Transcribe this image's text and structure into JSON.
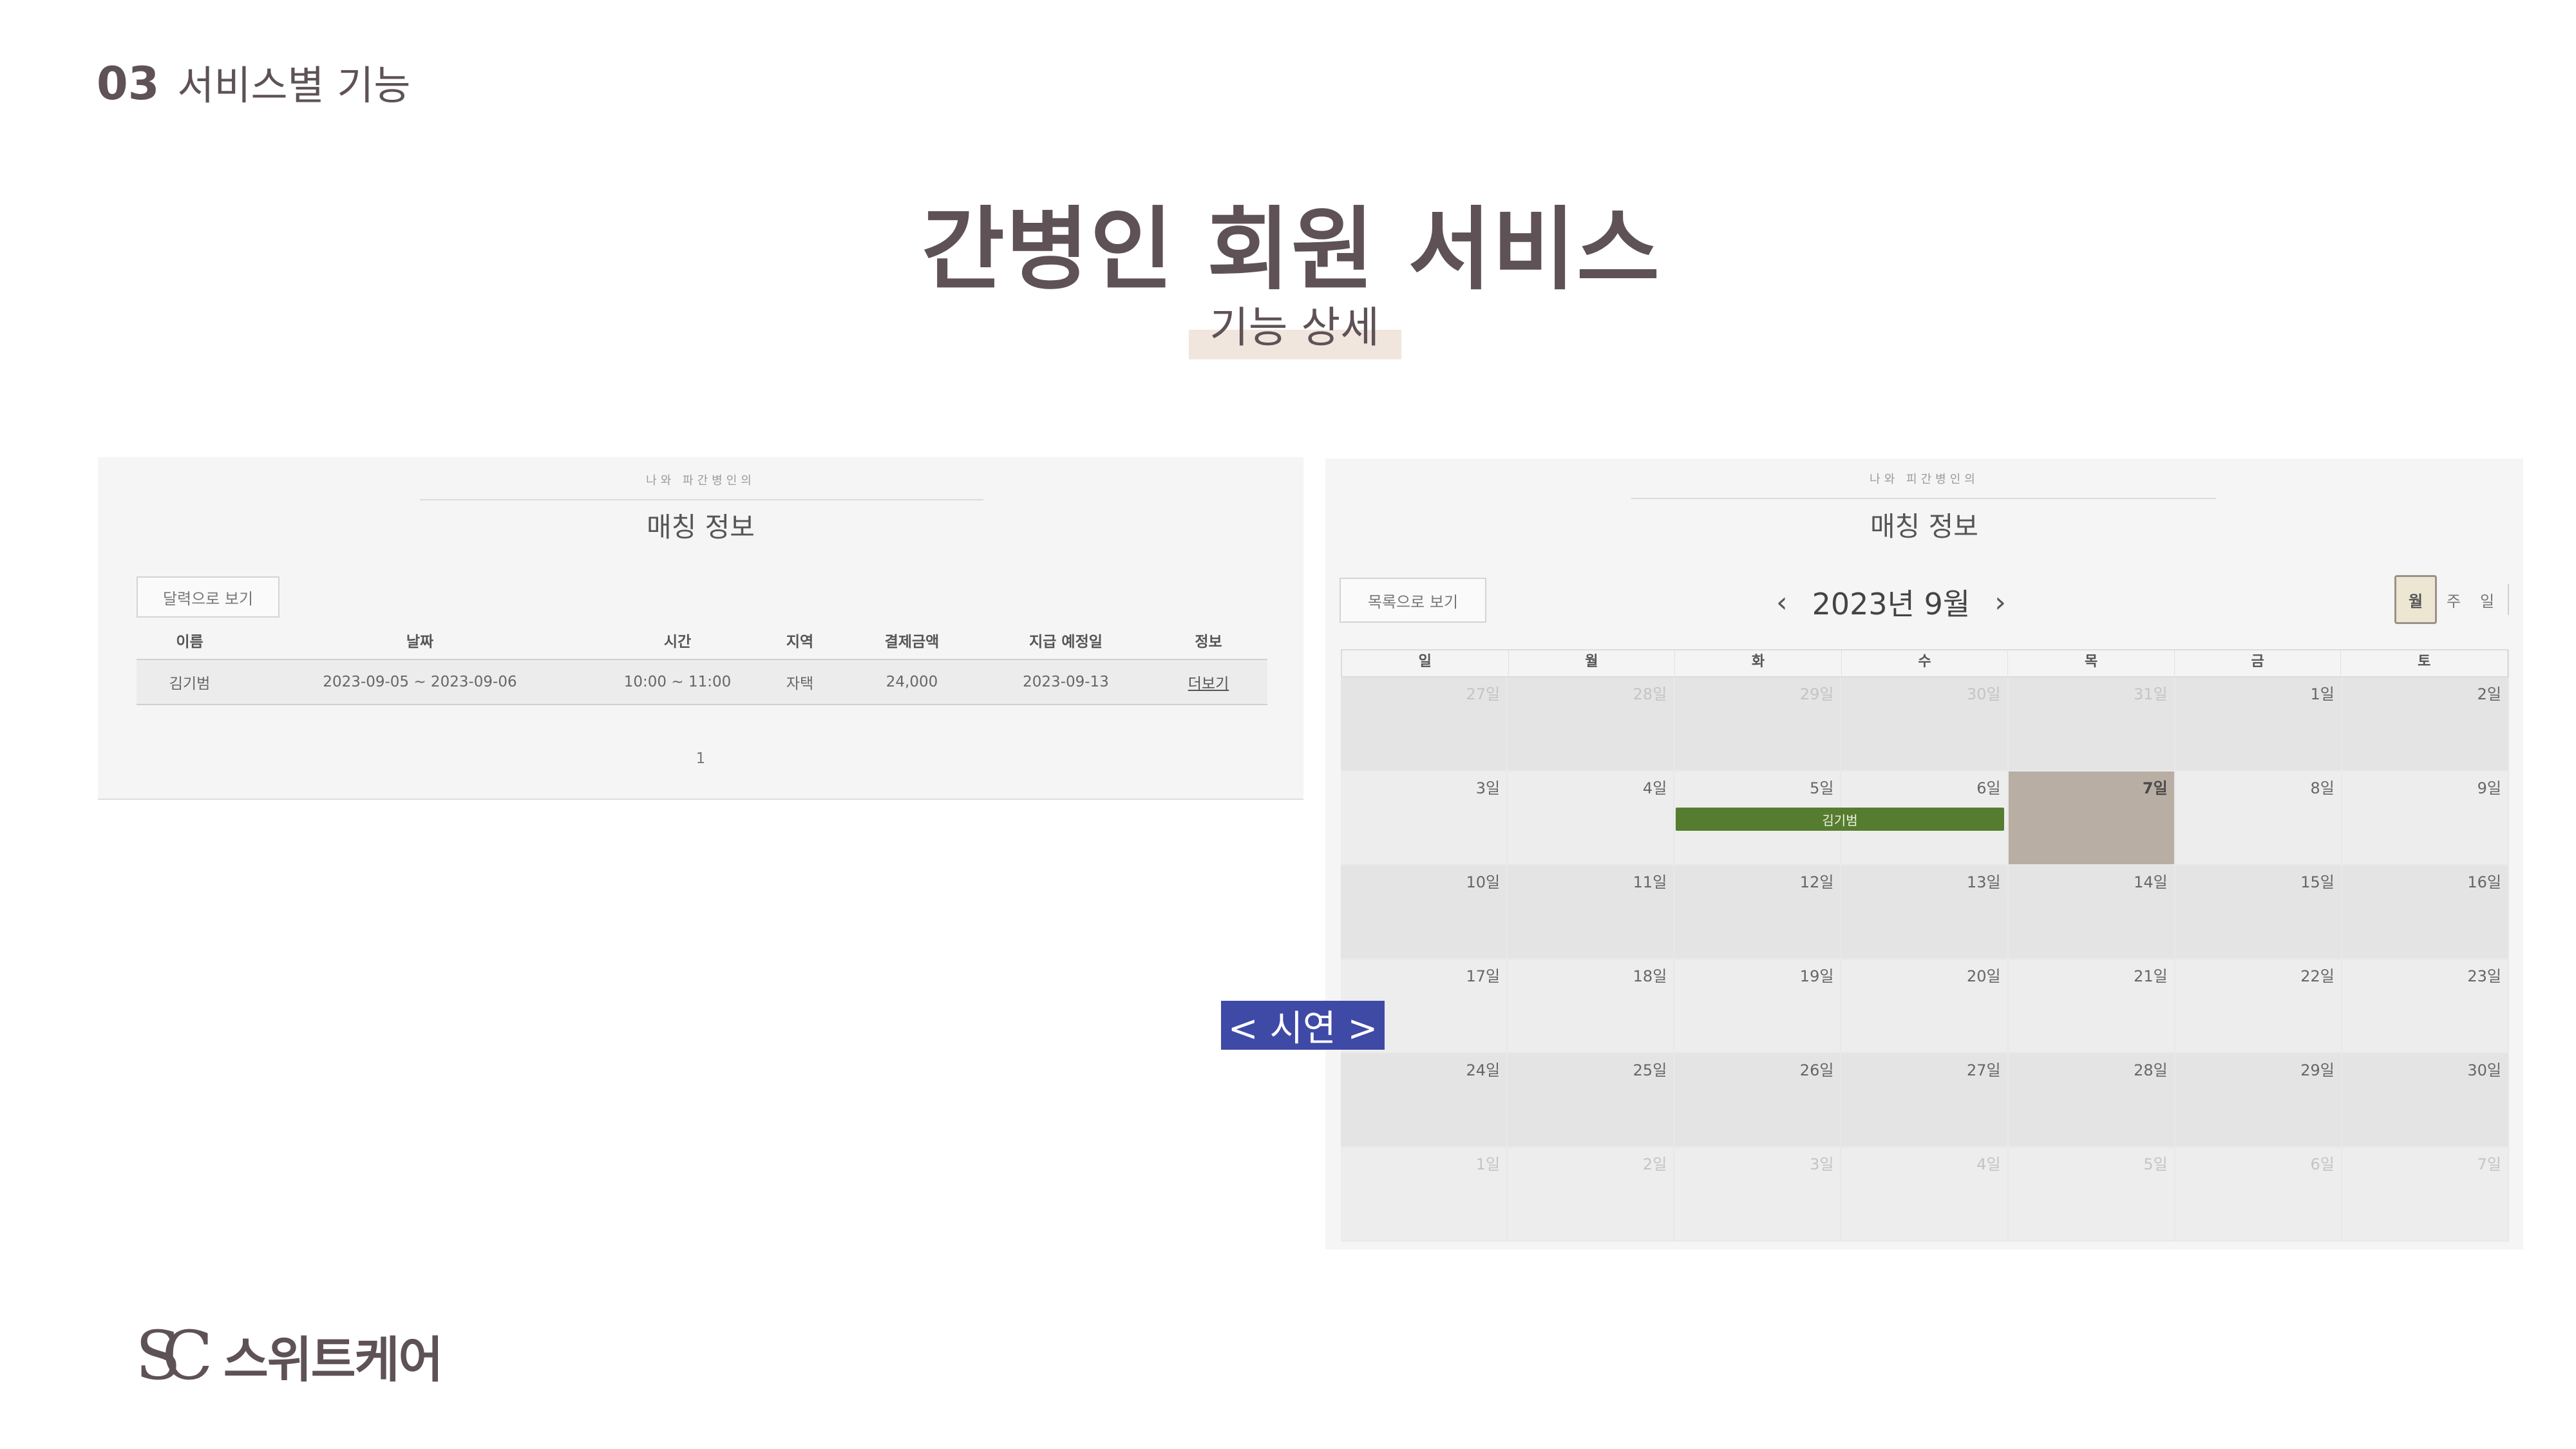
{
  "header": {
    "section_number": "03",
    "section_title": "서비스별 기능"
  },
  "title": "간병인 회원 서비스",
  "subtitle": "기능 상세",
  "list_panel": {
    "caption": "나와 파간병인의",
    "title": "매칭 정보",
    "toggle_button": "달력으로 보기",
    "columns": [
      "이름",
      "날짜",
      "시간",
      "지역",
      "결제금액",
      "지급 예정일",
      "정보"
    ],
    "rows": [
      {
        "name": "김기범",
        "date": "2023-09-05 ~ 2023-09-06",
        "time": "10:00 ~ 11:00",
        "region": "자택",
        "amount": "24,000",
        "payout_date": "2023-09-13",
        "info": "더보기"
      }
    ],
    "page": "1"
  },
  "calendar_panel": {
    "caption": "나와 피간병인의",
    "title": "매칭 정보",
    "toggle_button": "목록으로 보기",
    "prev": "‹",
    "next": "›",
    "month_label": "2023년 9월",
    "views": [
      "월",
      "주",
      "일"
    ],
    "active_view": "월",
    "weekdays": [
      "일",
      "월",
      "화",
      "수",
      "목",
      "금",
      "토"
    ],
    "weeks": [
      [
        "27일",
        "28일",
        "29일",
        "30일",
        "31일",
        "1일",
        "2일"
      ],
      [
        "3일",
        "4일",
        "5일",
        "6일",
        "7일",
        "8일",
        "9일"
      ],
      [
        "10일",
        "11일",
        "12일",
        "13일",
        "14일",
        "15일",
        "16일"
      ],
      [
        "17일",
        "18일",
        "19일",
        "20일",
        "21일",
        "22일",
        "23일"
      ],
      [
        "24일",
        "25일",
        "26일",
        "27일",
        "28일",
        "29일",
        "30일"
      ],
      [
        "1일",
        "2일",
        "3일",
        "4일",
        "5일",
        "6일",
        "7일"
      ]
    ],
    "today": "7일",
    "event": {
      "label": "김기범",
      "start": "5일",
      "end": "6일"
    },
    "event_color": "#567d2f",
    "today_color": "#b9aea3"
  },
  "demo_label": "< 시연 >",
  "logo": {
    "mark": "SC",
    "text": "스위트케어"
  }
}
